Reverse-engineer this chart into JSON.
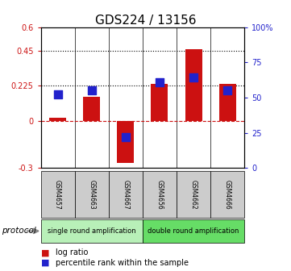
{
  "title": "GDS224 / 13156",
  "samples": [
    "GSM4657",
    "GSM4663",
    "GSM4667",
    "GSM4656",
    "GSM4662",
    "GSM4666"
  ],
  "log_ratios": [
    0.02,
    0.155,
    -0.27,
    0.235,
    0.46,
    0.235
  ],
  "percentile_ranks": [
    52,
    55,
    22,
    61,
    64,
    55
  ],
  "groups": [
    {
      "label": "single round amplification",
      "color": "#b8f0b8",
      "size": 3
    },
    {
      "label": "double round amplification",
      "color": "#66dd66",
      "size": 3
    }
  ],
  "protocol_label": "protocol",
  "ylim_left": [
    -0.3,
    0.6
  ],
  "ylim_right": [
    0,
    100
  ],
  "yticks_left": [
    -0.3,
    0.0,
    0.225,
    0.45,
    0.6
  ],
  "ytick_labels_left": [
    "-0.3",
    "0",
    "0.225",
    "0.45",
    "0.6"
  ],
  "yticks_right": [
    0,
    25,
    50,
    75,
    100
  ],
  "ytick_labels_right": [
    "0",
    "25",
    "50",
    "75",
    "100%"
  ],
  "hlines": [
    0.225,
    0.45
  ],
  "bar_color": "#cc1111",
  "dot_color": "#2222cc",
  "bar_width": 0.5,
  "dot_size": 60,
  "sample_box_color": "#cccccc"
}
